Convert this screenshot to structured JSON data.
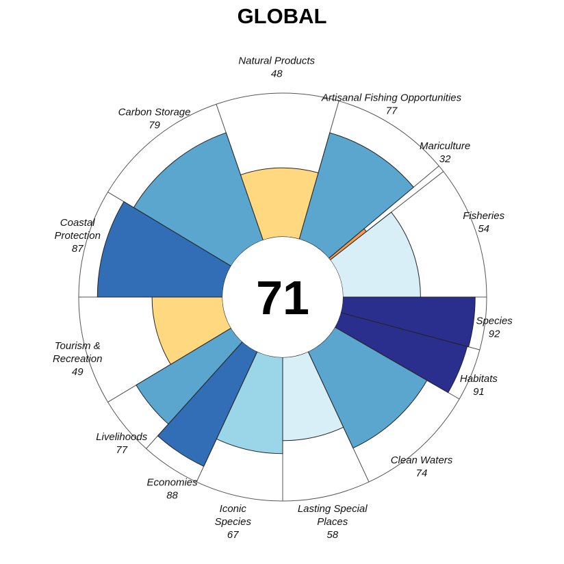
{
  "chart_data": {
    "type": "flower",
    "title": "GLOBAL",
    "overall_score": 71,
    "max_score": 100,
    "slices": [
      {
        "label": [
          "Species"
        ],
        "score": 92,
        "color": "#2a2f8e",
        "start": 0,
        "end": 15
      },
      {
        "label": [
          "Habitats"
        ],
        "score": 91,
        "color": "#2a2f8e",
        "start": 15,
        "end": 30
      },
      {
        "label": [
          "Clean Waters"
        ],
        "score": 74,
        "color": "#5aa6ce",
        "start": 30,
        "end": 65
      },
      {
        "label": [
          "Lasting Special",
          "Places"
        ],
        "score": 58,
        "color": "#d8eff8",
        "start": 65,
        "end": 90
      },
      {
        "label": [
          "Iconic",
          "Species"
        ],
        "score": 67,
        "color": "#9bd5e8",
        "start": 90,
        "end": 115
      },
      {
        "label": [
          "Economies"
        ],
        "score": 88,
        "color": "#316eb5",
        "start": 115,
        "end": 132
      },
      {
        "label": [
          "Livelihoods"
        ],
        "score": 77,
        "color": "#5aa6ce",
        "start": 132,
        "end": 149
      },
      {
        "label": [
          "Tourism &",
          "Recreation"
        ],
        "score": 49,
        "color": "#ffd87f",
        "start": 149,
        "end": 180
      },
      {
        "label": [
          "Coastal",
          "Protection"
        ],
        "score": 87,
        "color": "#316eb5",
        "start": 180,
        "end": 211
      },
      {
        "label": [
          "Carbon Storage"
        ],
        "score": 79,
        "color": "#5aa6ce",
        "start": 211,
        "end": 251
      },
      {
        "label": [
          "Natural Products"
        ],
        "score": 48,
        "color": "#ffd87f",
        "start": 251,
        "end": 286
      },
      {
        "label": [
          "Artisanal Fishing Opportunities"
        ],
        "score": 77,
        "color": "#5aa6ce",
        "start": 286,
        "end": 320
      },
      {
        "label": [
          "Mariculture"
        ],
        "score": 32,
        "color": "#f49a4a",
        "start": 320,
        "end": 322
      },
      {
        "label": [
          "Fisheries"
        ],
        "score": 54,
        "color": "#d8eff8",
        "start": 322,
        "end": 360
      }
    ]
  }
}
